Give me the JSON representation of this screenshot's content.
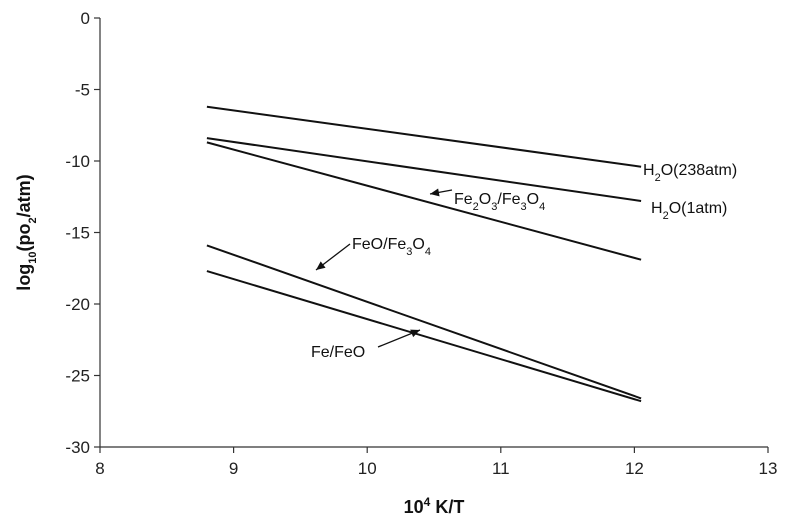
{
  "chart_data": {
    "type": "line",
    "title": "",
    "xlabel": {
      "base": "10",
      "sup": "4",
      "rest": " K/T"
    },
    "ylabel": {
      "pre": "log",
      "sub1": "10",
      "mid": "(po",
      "sub2": "2",
      "post": "/atm)"
    },
    "xlim": [
      8,
      13
    ],
    "ylim": [
      -30,
      0
    ],
    "xticks": [
      8,
      9,
      10,
      11,
      12,
      13
    ],
    "yticks": [
      0,
      -5,
      -10,
      -15,
      -20,
      -25,
      -30
    ],
    "grid": false,
    "legend": "none",
    "series": [
      {
        "key": "h2o_238",
        "x": [
          8.8,
          12.05
        ],
        "y": [
          -6.2,
          -10.4
        ]
      },
      {
        "key": "h2o_1",
        "x": [
          8.8,
          12.05
        ],
        "y": [
          -8.4,
          -12.8
        ]
      },
      {
        "key": "fe2o3_fe3o4",
        "x": [
          8.8,
          12.05
        ],
        "y": [
          -8.7,
          -16.9
        ]
      },
      {
        "key": "feo_fe3o4",
        "x": [
          8.8,
          12.05
        ],
        "y": [
          -15.9,
          -26.6
        ]
      },
      {
        "key": "fe_feo",
        "x": [
          8.8,
          12.05
        ],
        "y": [
          -17.7,
          -26.8
        ]
      }
    ],
    "annotations": [
      {
        "key": "h2o_238",
        "parts": [
          [
            "n",
            "H"
          ],
          [
            "sub",
            "2"
          ],
          [
            "n",
            "O(238atm)"
          ]
        ]
      },
      {
        "key": "h2o_1",
        "parts": [
          [
            "n",
            "H"
          ],
          [
            "sub",
            "2"
          ],
          [
            "n",
            "O(1atm)"
          ]
        ]
      },
      {
        "key": "fe2o3_fe3o4",
        "parts": [
          [
            "n",
            "Fe"
          ],
          [
            "sub",
            "2"
          ],
          [
            "n",
            "O"
          ],
          [
            "sub",
            "3"
          ],
          [
            "n",
            "/Fe"
          ],
          [
            "sub",
            "3"
          ],
          [
            "n",
            "O"
          ],
          [
            "sub",
            "4"
          ]
        ]
      },
      {
        "key": "feo_fe3o4",
        "parts": [
          [
            "n",
            "FeO/Fe"
          ],
          [
            "sub",
            "3"
          ],
          [
            "n",
            "O"
          ],
          [
            "sub",
            "4"
          ]
        ]
      },
      {
        "key": "fe_feo",
        "parts": [
          [
            "n",
            "Fe/FeO"
          ]
        ]
      }
    ]
  }
}
